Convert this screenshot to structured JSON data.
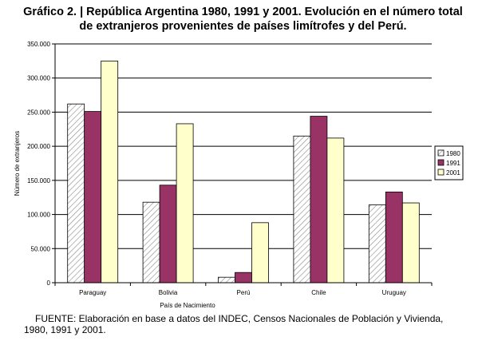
{
  "title_line1": "Gráfico 2. | República Argentina 1980, 1991 y 2001. Evolución en el número total",
  "title_line2": "de extranjeros provenientes de países limítrofes y del Perú.",
  "footer_line1": "FUENTE: Elaboración en base a datos del INDEC, Censos Nacionales de Población y Vivienda,",
  "footer_line2": "1980, 1991 y 2001.",
  "chart_data": {
    "type": "bar",
    "categories": [
      "Paraguay",
      "Bolivia",
      "Perú",
      "Chile",
      "Uruguay"
    ],
    "series": [
      {
        "name": "1980",
        "values": [
          262000,
          118000,
          8000,
          215000,
          114000
        ],
        "color": "#ffffff",
        "pattern": "diagonal-hatch"
      },
      {
        "name": "1991",
        "values": [
          251000,
          143000,
          15000,
          244000,
          133000
        ],
        "color": "#993366"
      },
      {
        "name": "2001",
        "values": [
          325000,
          233000,
          88000,
          212000,
          117000
        ],
        "color": "#ffffcc"
      }
    ],
    "xlabel": "País de Nacimiento",
    "ylabel": "Número de extranjeros",
    "ylim": [
      0,
      350000
    ],
    "yticks": [
      0,
      50000,
      100000,
      150000,
      200000,
      250000,
      300000,
      350000
    ],
    "ytick_labels": [
      "0",
      "50.000",
      "100.000",
      "150.000",
      "200.000",
      "250.000",
      "300.000",
      "350.000"
    ],
    "grid": true,
    "legend_position": "right"
  }
}
